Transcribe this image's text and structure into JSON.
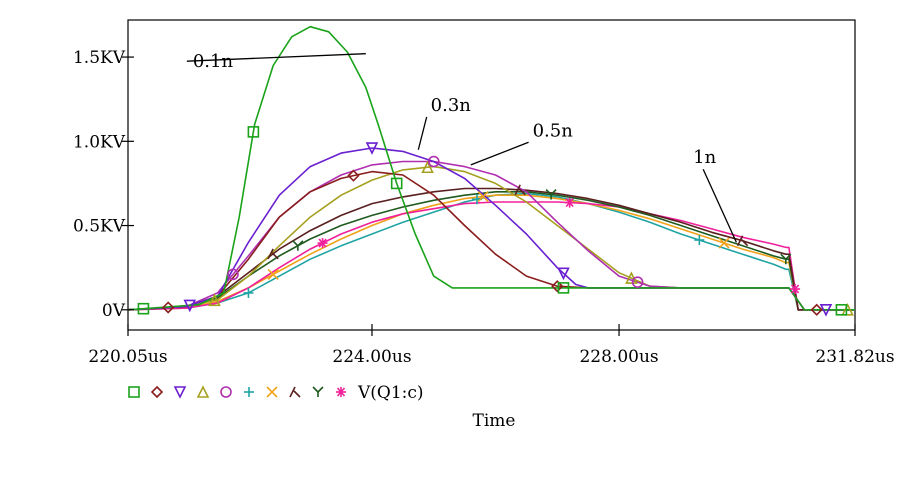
{
  "chart_data": {
    "type": "line",
    "xlabel": "Time",
    "ylabel": "",
    "xlim": [
      220.05,
      231.82
    ],
    "ylim": [
      -0.12,
      1.72
    ],
    "x_ticks": [
      {
        "value": 220.05,
        "label": "220.05us"
      },
      {
        "value": 224.0,
        "label": "224.00us"
      },
      {
        "value": 228.0,
        "label": "228.00us"
      },
      {
        "value": 231.82,
        "label": "231.82us"
      }
    ],
    "y_ticks": [
      {
        "value": 0.0,
        "label": "0V"
      },
      {
        "value": 0.5,
        "label": "0.5KV"
      },
      {
        "value": 1.0,
        "label": "1.0KV"
      },
      {
        "value": 1.5,
        "label": "1.5KV"
      }
    ],
    "grid": false,
    "legend_placement": "bottom-left",
    "legend_label": "V(Q1:c)",
    "annotations": [
      {
        "text": "0.1n",
        "x": 221.1,
        "y": 1.44,
        "arrow_to": [
          223.9,
          1.52
        ]
      },
      {
        "text": "0.3n",
        "x": 224.95,
        "y": 1.18,
        "arrow_to": [
          224.75,
          0.95
        ]
      },
      {
        "text": "0.5n",
        "x": 226.6,
        "y": 1.03,
        "arrow_to": [
          225.6,
          0.86
        ]
      },
      {
        "text": "1n",
        "x": 229.2,
        "y": 0.87,
        "arrow_to": [
          229.9,
          0.4
        ]
      }
    ],
    "series": [
      {
        "color": "#1aa31a",
        "marker": "square",
        "x": [
          220.05,
          221.2,
          221.6,
          221.85,
          222.1,
          222.4,
          222.7,
          223.0,
          223.3,
          223.6,
          223.9,
          224.1,
          224.4,
          224.7,
          225.0,
          225.3,
          225.4,
          226.0,
          227.0,
          228.0,
          229.0,
          230.0,
          230.5,
          230.75,
          231.0,
          231.82
        ],
        "y": [
          0,
          0.03,
          0.1,
          0.55,
          1.1,
          1.45,
          1.62,
          1.68,
          1.65,
          1.53,
          1.32,
          1.1,
          0.75,
          0.45,
          0.2,
          0.13,
          0.13,
          0.13,
          0.13,
          0.13,
          0.13,
          0.13,
          0.13,
          0.13,
          0.0,
          0.0
        ],
        "markers_x": [
          220.3,
          222.08,
          224.4,
          227.1,
          231.6
        ]
      },
      {
        "color": "#8a1c1c",
        "marker": "diamond",
        "x": [
          220.05,
          221.0,
          221.5,
          222.0,
          222.5,
          223.0,
          223.5,
          224.0,
          224.5,
          225.0,
          225.5,
          226.0,
          226.5,
          227.0,
          227.5,
          228.0,
          229.0,
          230.0,
          230.5,
          230.75,
          231.0,
          231.82
        ],
        "y": [
          0,
          0.02,
          0.08,
          0.3,
          0.55,
          0.7,
          0.78,
          0.82,
          0.8,
          0.68,
          0.5,
          0.33,
          0.2,
          0.14,
          0.13,
          0.13,
          0.13,
          0.13,
          0.13,
          0.13,
          0.0,
          0.0
        ],
        "markers_x": [
          220.7,
          223.7,
          227.0,
          231.2
        ]
      },
      {
        "color": "#6a1fd0",
        "marker": "triangle-down",
        "x": [
          220.05,
          221.0,
          221.5,
          222.0,
          222.5,
          223.0,
          223.5,
          224.0,
          224.5,
          225.0,
          225.5,
          226.0,
          226.5,
          227.0,
          227.3,
          227.5,
          228.0,
          229.0,
          230.0,
          230.5,
          230.75,
          231.0,
          231.82
        ],
        "y": [
          0,
          0.02,
          0.08,
          0.4,
          0.68,
          0.85,
          0.93,
          0.96,
          0.94,
          0.88,
          0.78,
          0.62,
          0.45,
          0.25,
          0.15,
          0.13,
          0.13,
          0.13,
          0.13,
          0.13,
          0.13,
          0.0,
          0.0
        ],
        "markers_x": [
          221.05,
          224.0,
          227.1,
          231.35
        ]
      },
      {
        "color": "#a6a01f",
        "marker": "triangle-up",
        "x": [
          220.05,
          221.0,
          221.5,
          222.0,
          222.5,
          223.0,
          223.5,
          224.0,
          224.5,
          225.0,
          225.5,
          226.0,
          226.5,
          227.0,
          227.5,
          228.0,
          228.5,
          229.0,
          230.0,
          230.5,
          230.75,
          231.0,
          231.82
        ],
        "y": [
          0,
          0.02,
          0.06,
          0.2,
          0.38,
          0.55,
          0.68,
          0.77,
          0.83,
          0.85,
          0.82,
          0.75,
          0.64,
          0.5,
          0.36,
          0.22,
          0.14,
          0.13,
          0.13,
          0.13,
          0.13,
          0.0,
          0.0
        ],
        "markers_x": [
          221.45,
          224.9,
          228.2,
          231.7
        ]
      },
      {
        "color": "#b02fb0",
        "marker": "circle",
        "x": [
          220.05,
          221.0,
          221.5,
          222.0,
          222.5,
          223.0,
          223.5,
          224.0,
          224.5,
          225.0,
          225.5,
          226.0,
          226.5,
          227.0,
          227.5,
          228.0,
          228.5,
          229.0,
          230.0,
          230.5,
          230.75,
          231.0,
          231.82
        ],
        "y": [
          0,
          0.02,
          0.1,
          0.32,
          0.55,
          0.7,
          0.8,
          0.86,
          0.88,
          0.88,
          0.85,
          0.8,
          0.7,
          0.52,
          0.35,
          0.2,
          0.14,
          0.13,
          0.13,
          0.13,
          0.13,
          0.0,
          0.0
        ],
        "markers_x": [
          221.75,
          225.0,
          228.3
        ]
      },
      {
        "color": "#1fa3a3",
        "marker": "plus",
        "x": [
          220.05,
          221.0,
          221.5,
          222.0,
          222.5,
          223.0,
          223.5,
          224.0,
          224.5,
          225.0,
          225.5,
          226.0,
          226.5,
          227.0,
          227.5,
          228.0,
          228.5,
          229.0,
          229.5,
          230.0,
          230.5,
          230.7,
          230.75,
          230.9,
          231.82
        ],
        "y": [
          0,
          0.01,
          0.04,
          0.1,
          0.2,
          0.3,
          0.38,
          0.45,
          0.52,
          0.58,
          0.64,
          0.68,
          0.69,
          0.67,
          0.63,
          0.58,
          0.52,
          0.45,
          0.39,
          0.33,
          0.27,
          0.24,
          0.24,
          0.0,
          0.0
        ],
        "markers_x": [
          222.0,
          225.7,
          229.3
        ]
      },
      {
        "color": "#f0a21a",
        "marker": "x",
        "x": [
          220.05,
          221.0,
          221.5,
          222.0,
          222.5,
          223.0,
          223.5,
          224.0,
          224.5,
          225.0,
          225.5,
          226.0,
          226.5,
          227.0,
          227.5,
          228.0,
          228.5,
          229.0,
          229.5,
          230.0,
          230.5,
          230.7,
          230.75,
          230.9,
          231.82
        ],
        "y": [
          0,
          0.01,
          0.05,
          0.13,
          0.23,
          0.33,
          0.42,
          0.5,
          0.57,
          0.62,
          0.66,
          0.68,
          0.68,
          0.66,
          0.63,
          0.59,
          0.54,
          0.48,
          0.42,
          0.36,
          0.31,
          0.28,
          0.28,
          0.0,
          0.0
        ],
        "markers_x": [
          222.4,
          225.8,
          229.7
        ]
      },
      {
        "color": "#5a1f1f",
        "marker": "lambda",
        "x": [
          220.05,
          221.0,
          221.5,
          222.0,
          222.5,
          223.0,
          223.5,
          224.0,
          224.5,
          225.0,
          225.5,
          226.0,
          226.5,
          227.0,
          227.5,
          228.0,
          228.5,
          229.0,
          229.5,
          230.0,
          230.5,
          230.7,
          230.75,
          230.9,
          231.82
        ],
        "y": [
          0,
          0.02,
          0.08,
          0.22,
          0.36,
          0.47,
          0.56,
          0.63,
          0.67,
          0.7,
          0.72,
          0.72,
          0.71,
          0.69,
          0.66,
          0.62,
          0.57,
          0.52,
          0.46,
          0.41,
          0.35,
          0.33,
          0.33,
          0.0,
          0.0
        ],
        "markers_x": [
          222.4,
          226.4,
          230.0
        ]
      },
      {
        "color": "#1f5a1f",
        "marker": "y",
        "x": [
          220.05,
          221.0,
          221.5,
          222.0,
          222.5,
          223.0,
          223.5,
          224.0,
          224.5,
          225.0,
          225.5,
          226.0,
          226.5,
          227.0,
          227.5,
          228.0,
          228.5,
          229.0,
          229.5,
          230.0,
          230.5,
          230.7,
          230.75,
          230.9,
          231.82
        ],
        "y": [
          0,
          0.02,
          0.07,
          0.2,
          0.32,
          0.42,
          0.5,
          0.56,
          0.61,
          0.65,
          0.68,
          0.7,
          0.7,
          0.68,
          0.65,
          0.61,
          0.56,
          0.5,
          0.44,
          0.38,
          0.32,
          0.3,
          0.3,
          0.0,
          0.0
        ],
        "markers_x": [
          222.8,
          226.9,
          230.7
        ]
      },
      {
        "color": "#f0209a",
        "marker": "asterisk",
        "x": [
          220.05,
          221.0,
          221.5,
          222.0,
          222.5,
          223.0,
          223.5,
          224.0,
          224.5,
          225.0,
          225.5,
          226.0,
          226.5,
          227.0,
          227.5,
          228.0,
          228.5,
          229.0,
          229.5,
          230.0,
          230.5,
          230.7,
          230.75,
          230.9,
          231.82
        ],
        "y": [
          0,
          0.01,
          0.04,
          0.13,
          0.25,
          0.36,
          0.45,
          0.52,
          0.57,
          0.6,
          0.63,
          0.64,
          0.64,
          0.64,
          0.63,
          0.61,
          0.57,
          0.53,
          0.48,
          0.43,
          0.39,
          0.37,
          0.37,
          0.0,
          0.0
        ],
        "markers_x": [
          223.2,
          227.2,
          230.85
        ]
      }
    ]
  }
}
